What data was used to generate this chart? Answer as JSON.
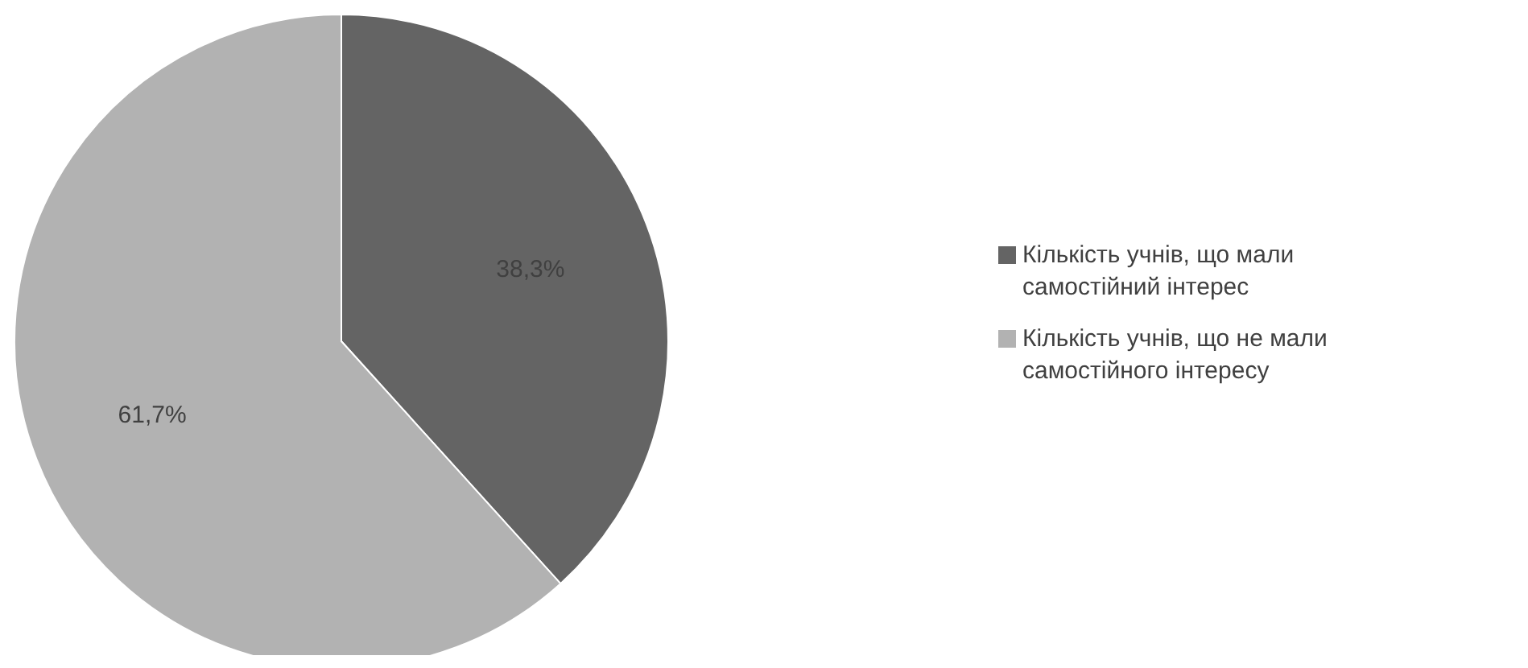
{
  "chart_data": {
    "type": "pie",
    "categories": [
      "Кількість учнів, що мали самостійний інтерес",
      "Кількість учнів, що не мали самостійного інтересу"
    ],
    "values": [
      38.3,
      61.7
    ],
    "colors": [
      "#646464",
      "#b2b2b2"
    ],
    "value_labels": [
      "38,3%",
      "61,7%"
    ],
    "legend": "right"
  }
}
